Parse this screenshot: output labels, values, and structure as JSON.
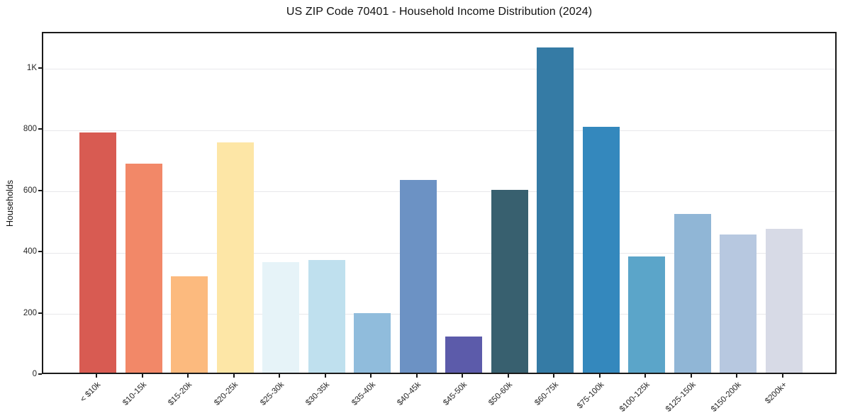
{
  "chart_data": {
    "type": "bar",
    "title": "US ZIP Code 70401 - Household Income Distribution (2024)",
    "xlabel": "",
    "ylabel": "Households",
    "categories": [
      "< $10k",
      "$10-15k",
      "$15-20k",
      "$20-25k",
      "$25-30k",
      "$30-35k",
      "$35-40k",
      "$40-45k",
      "$45-50k",
      "$50-60k",
      "$60-75k",
      "$75-100k",
      "$100-125k",
      "$125-150k",
      "$150-200k",
      "$200k+"
    ],
    "values": [
      785,
      682,
      315,
      752,
      360,
      367,
      195,
      628,
      118,
      597,
      1062,
      803,
      380,
      517,
      450,
      470
    ],
    "bar_colors": [
      "#d85b52",
      "#f28868",
      "#fcba7e",
      "#fde6a6",
      "#e6f3f8",
      "#bfe0ee",
      "#90bcdc",
      "#6c92c4",
      "#5c5baa",
      "#38606f",
      "#357ba5",
      "#3488bd",
      "#5ba5c9",
      "#90b6d6",
      "#b7c8e0",
      "#d7dae6"
    ],
    "ylim": [
      0,
      1117
    ],
    "yticks": [
      0,
      200,
      400,
      600,
      800,
      1000
    ],
    "ytick_labels": [
      "0",
      "200",
      "400",
      "600",
      "800",
      "1K"
    ],
    "legend": "none",
    "grid": "horizontal",
    "gridline_color": "#e8e8eb",
    "background_color": "#ffffff",
    "spine_color": "#1a1a1a"
  }
}
